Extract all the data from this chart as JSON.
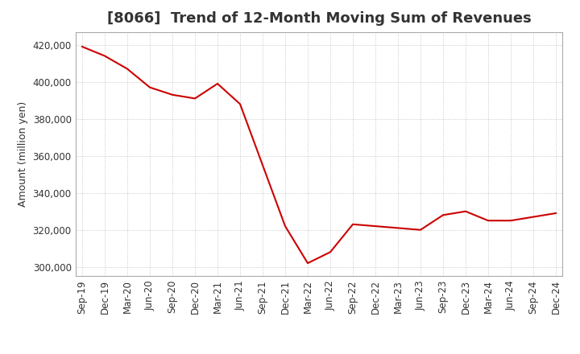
{
  "title": "[8066]  Trend of 12-Month Moving Sum of Revenues",
  "ylabel": "Amount (million yen)",
  "background_color": "#ffffff",
  "grid_color": "#bbbbbb",
  "line_color": "#cc0000",
  "x_labels": [
    "Sep-19",
    "Dec-19",
    "Mar-20",
    "Jun-20",
    "Sep-20",
    "Dec-20",
    "Mar-21",
    "Jun-21",
    "Sep-21",
    "Dec-21",
    "Mar-22",
    "Jun-22",
    "Sep-22",
    "Dec-22",
    "Mar-23",
    "Jun-23",
    "Sep-23",
    "Dec-23",
    "Mar-24",
    "Jun-24",
    "Sep-24",
    "Dec-24"
  ],
  "values": [
    419000,
    414000,
    407000,
    397000,
    393000,
    391000,
    399000,
    388000,
    355000,
    322000,
    302000,
    308000,
    323000,
    322000,
    321000,
    320000,
    328000,
    330000,
    325000,
    325000,
    327000,
    329000
  ],
  "ylim": [
    295000,
    427000
  ],
  "yticks": [
    300000,
    320000,
    340000,
    360000,
    380000,
    400000,
    420000
  ],
  "title_fontsize": 13,
  "axis_fontsize": 9,
  "tick_fontsize": 8.5
}
